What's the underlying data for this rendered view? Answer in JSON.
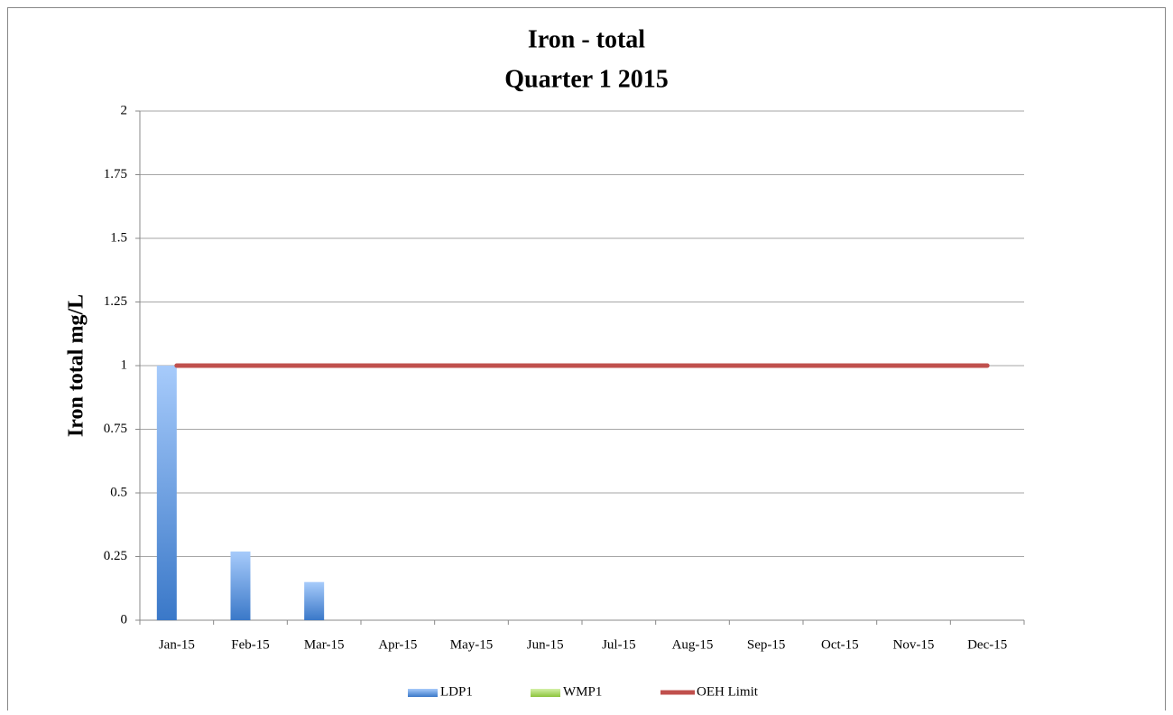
{
  "chart_data": {
    "type": "bar",
    "title": "Iron - total",
    "subtitle": "Quarter 1 2015",
    "y_label": "Iron total mg/L",
    "categories": [
      "Jan-15",
      "Feb-15",
      "Mar-15",
      "Apr-15",
      "May-15",
      "Jun-15",
      "Jul-15",
      "Aug-15",
      "Sep-15",
      "Oct-15",
      "Nov-15",
      "Dec-15"
    ],
    "series": [
      {
        "name": "LDP1",
        "type": "bar",
        "color": "#4a86d8",
        "values": [
          1,
          0.27,
          0.15,
          null,
          null,
          null,
          null,
          null,
          null,
          null,
          null,
          null
        ]
      },
      {
        "name": "WMP1",
        "type": "bar",
        "color": "#9bd04a",
        "values": [
          null,
          null,
          null,
          null,
          null,
          null,
          null,
          null,
          null,
          null,
          null,
          null
        ]
      },
      {
        "name": "OEH Limit",
        "type": "line",
        "color": "#c0504d",
        "values": [
          1,
          1,
          1,
          1,
          1,
          1,
          1,
          1,
          1,
          1,
          1,
          1
        ]
      }
    ],
    "ylim": [
      0,
      2
    ],
    "yticks": [
      0,
      0.25,
      0.5,
      0.75,
      1,
      1.25,
      1.5,
      1.75,
      2
    ],
    "grid": true,
    "legend": "bottom"
  }
}
